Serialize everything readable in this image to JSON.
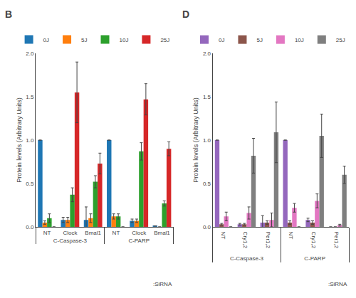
{
  "chart_data": [
    {
      "type": "bar",
      "title": "B",
      "categories": [
        [
          "C-Caspase-3",
          "NT"
        ],
        [
          "C-Caspase-3",
          "Clock"
        ],
        [
          "C-Caspase-3",
          "Bmal1"
        ],
        [
          "C-PARP",
          "NT"
        ],
        [
          "C-PARP",
          "Clock"
        ],
        [
          "C-PARP",
          "Bmal1"
        ]
      ],
      "series": [
        {
          "name": "0J",
          "values": [
            1.0,
            0.08,
            0.08,
            1.0,
            0.07,
            0.01
          ],
          "errors": [
            0.0,
            0.03,
            0.15,
            0.0,
            0.02,
            0.0
          ]
        },
        {
          "name": "5J",
          "values": [
            0.05,
            0.08,
            0.1,
            0.12,
            0.07,
            0.0
          ],
          "errors": [
            0.02,
            0.03,
            0.05,
            0.03,
            0.02,
            0.0
          ]
        },
        {
          "name": "10J",
          "values": [
            0.1,
            0.37,
            0.52,
            0.12,
            0.87,
            0.27
          ],
          "errors": [
            0.05,
            0.08,
            0.07,
            0.03,
            0.1,
            0.03
          ]
        },
        {
          "name": "25J",
          "values": [
            0.0,
            1.55,
            0.73,
            0.0,
            1.47,
            0.9
          ],
          "errors": [
            0.0,
            0.35,
            0.12,
            0.0,
            0.18,
            0.08
          ]
        }
      ],
      "ylabel": "Protein levels (Arbitrary Units)",
      "ylim": [
        0,
        2.0
      ],
      "yticks": [
        {
          "value": 0,
          "label": "0.0"
        },
        0.5,
        {
          "value": 1,
          "label": "1.0"
        },
        1.5,
        {
          "value": 2,
          "label": "2.0"
        }
      ],
      "annotations": [
        ":SiRNA"
      ],
      "grid": false,
      "legend": "upper right"
    },
    {
      "type": "bar",
      "title": "D",
      "categories": [
        [
          "C-Caspase-3",
          "NT"
        ],
        [
          "C-Caspase-3",
          "Cry1,2"
        ],
        [
          "C-Caspase-3",
          "Per1,2"
        ],
        [
          "C-PARP",
          "NT"
        ],
        [
          "C-PARP",
          "Cry1,2"
        ],
        [
          "C-PARP",
          "Per1,2"
        ]
      ],
      "series": [
        {
          "name": "0J",
          "values": [
            1.0,
            0.03,
            0.05,
            1.0,
            0.08,
            0.0
          ],
          "errors": [
            0.0,
            0.01,
            0.08,
            0.0,
            0.02,
            0.0
          ]
        },
        {
          "name": "5J",
          "values": [
            0.03,
            0.03,
            0.05,
            0.05,
            0.05,
            0.0
          ],
          "errors": [
            0.01,
            0.01,
            0.02,
            0.02,
            0.02,
            0.0
          ]
        },
        {
          "name": "10J",
          "values": [
            0.12,
            0.16,
            0.08,
            0.22,
            0.3,
            0.02
          ],
          "errors": [
            0.05,
            0.07,
            0.08,
            0.05,
            0.08,
            0.01
          ]
        },
        {
          "name": "25J",
          "values": [
            0.0,
            0.82,
            1.09,
            0.0,
            1.05,
            0.6
          ],
          "errors": [
            0.0,
            0.2,
            0.35,
            0.0,
            0.25,
            0.1
          ]
        }
      ],
      "ylabel": "Protein levels (Arbitrary Units)",
      "ylim": [
        0,
        2.0
      ],
      "yticks": [
        {
          "value": 0,
          "label": "0.0"
        },
        0.5,
        {
          "value": 1,
          "label": "1.0"
        },
        1.5,
        {
          "value": 2,
          "label": "2.0"
        }
      ],
      "annotations": [
        ":SiRNA"
      ],
      "grid": false,
      "legend": "upper right"
    }
  ]
}
